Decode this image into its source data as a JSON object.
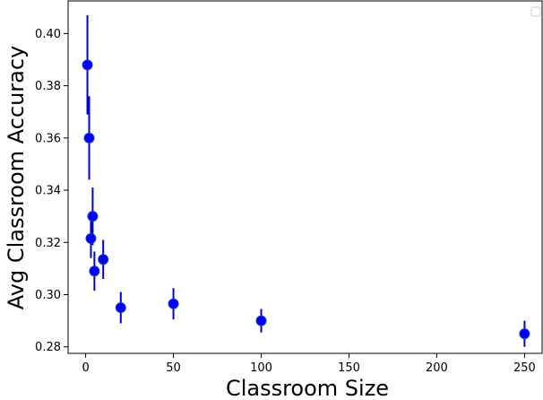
{
  "chart_data": {
    "type": "scatter",
    "title": "",
    "xlabel": "Classroom Size",
    "ylabel": "Avg Classroom Accuracy",
    "xlim": [
      -10,
      260
    ],
    "ylim": [
      0.2775,
      0.4125
    ],
    "xticks": [
      0,
      50,
      100,
      150,
      200,
      250
    ],
    "yticks": [
      0.28,
      0.3,
      0.32,
      0.34,
      0.36,
      0.38,
      0.4
    ],
    "xtick_labels": [
      "0",
      "50",
      "100",
      "150",
      "200",
      "250"
    ],
    "ytick_labels": [
      "0.28",
      "0.30",
      "0.32",
      "0.34",
      "0.36",
      "0.38",
      "0.40"
    ],
    "grid": false,
    "legend": {
      "placement": "top-right",
      "entries": []
    },
    "marker_color": "#0000ff",
    "marker_edge_color": "#1f3fbf",
    "errorbar_color": "#0000dd",
    "points": [
      {
        "x": 1,
        "y": 0.388,
        "yerr": 0.019
      },
      {
        "x": 2,
        "y": 0.36,
        "yerr": 0.016
      },
      {
        "x": 3,
        "y": 0.3215,
        "yerr": 0.0075
      },
      {
        "x": 4,
        "y": 0.33,
        "yerr": 0.011
      },
      {
        "x": 5,
        "y": 0.309,
        "yerr": 0.0075
      },
      {
        "x": 10,
        "y": 0.3135,
        "yerr": 0.0075
      },
      {
        "x": 20,
        "y": 0.295,
        "yerr": 0.006
      },
      {
        "x": 50,
        "y": 0.2965,
        "yerr": 0.006
      },
      {
        "x": 100,
        "y": 0.29,
        "yerr": 0.0045
      },
      {
        "x": 250,
        "y": 0.285,
        "yerr": 0.005
      }
    ]
  }
}
